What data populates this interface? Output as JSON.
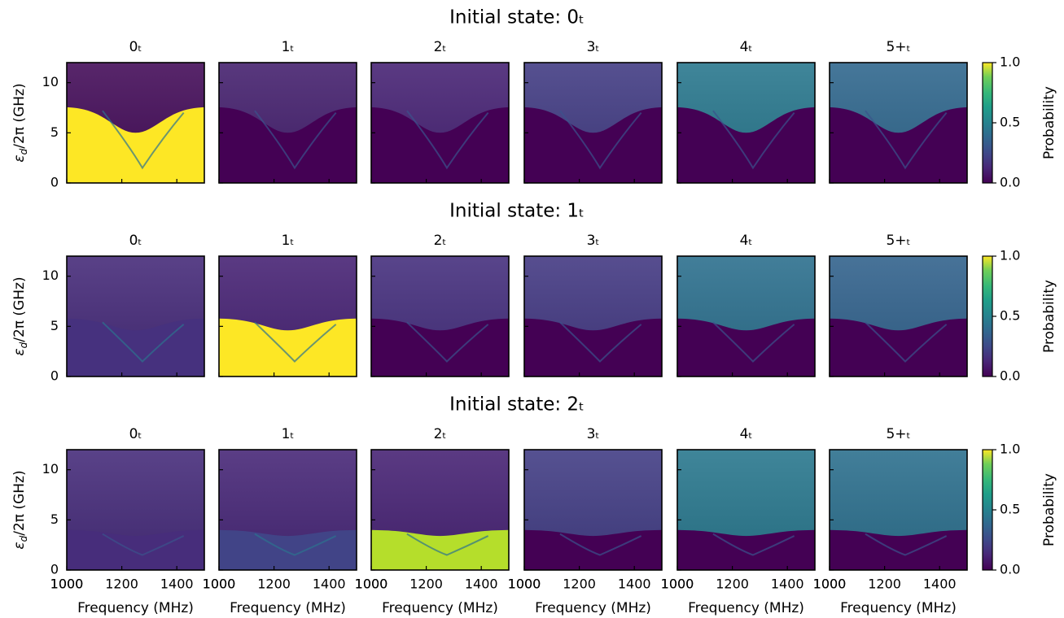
{
  "chart_data": [
    {
      "type": "heatmap",
      "title": "Initial state: 0ₜ",
      "categories": [
        "0ₜ",
        "1ₜ",
        "2ₜ",
        "3ₜ",
        "4ₜ",
        "5+ₜ"
      ],
      "ylabel": "εd/2π (GHz)",
      "xlim": [
        1000,
        1500
      ],
      "xticks": [
        1000,
        1200,
        1400
      ],
      "ylim": [
        0,
        12
      ],
      "yticks": [
        0,
        5,
        10
      ],
      "colormap": "viridis",
      "clim": [
        0,
        1
      ],
      "cticks": [
        {
          "value": 0,
          "label": "0.0"
        },
        0.5,
        {
          "value": 1,
          "label": "1.0"
        }
      ],
      "clabel": "Probability"
    },
    {
      "type": "heatmap",
      "title": "Initial state: 1ₜ",
      "categories": [
        "0ₜ",
        "1ₜ",
        "2ₜ",
        "3ₜ",
        "4ₜ",
        "5+ₜ"
      ],
      "ylabel": "εd/2π (GHz)",
      "xlim": [
        1000,
        1500
      ],
      "xticks": [
        1000,
        1200,
        1400
      ],
      "ylim": [
        0,
        12
      ],
      "yticks": [
        0,
        5,
        10
      ],
      "colormap": "viridis",
      "clim": [
        0,
        1
      ],
      "cticks": [
        {
          "value": 0,
          "label": "0.0"
        },
        0.5,
        {
          "value": 1,
          "label": "1.0"
        }
      ],
      "clabel": "Probability"
    },
    {
      "type": "heatmap",
      "title": "Initial state: 2ₜ",
      "categories": [
        "0ₜ",
        "1ₜ",
        "2ₜ",
        "3ₜ",
        "4ₜ",
        "5+ₜ"
      ],
      "xlabel": "Frequency (MHz)",
      "ylabel": "εd/2π (GHz)",
      "xlim": [
        1000,
        1500
      ],
      "xticks": [
        1000,
        1200,
        1400
      ],
      "ylim": [
        0,
        12
      ],
      "yticks": [
        0,
        5,
        10
      ],
      "colormap": "viridis",
      "clim": [
        0,
        1
      ],
      "cticks": [
        {
          "value": 0,
          "label": "0.0"
        },
        0.5,
        {
          "value": 1,
          "label": "1.0"
        }
      ],
      "clabel": "Probability"
    }
  ]
}
